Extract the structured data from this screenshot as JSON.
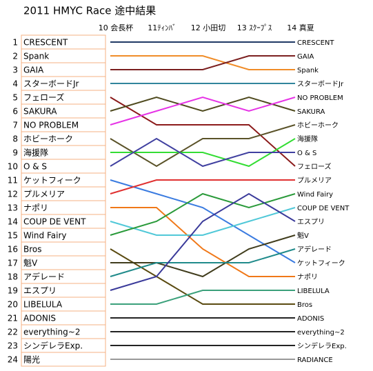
{
  "chart_data": {
    "type": "bump",
    "title": "2011 HMYC Race 途中結果",
    "categories": [
      "10 会長杯",
      "11ﾃｨﾝﾊﾞ",
      "12 小田切",
      "13 ｽｸｰﾌﾟｽ",
      "14 真夏"
    ],
    "ylim": [
      1,
      24
    ],
    "y_inverted": true,
    "yticks": [
      1,
      2,
      3,
      4,
      5,
      6,
      7,
      8,
      9,
      10,
      11,
      12,
      13,
      14,
      15,
      16,
      17,
      18,
      19,
      20,
      21,
      22,
      23,
      24
    ],
    "series": [
      {
        "name": "CRESCENT",
        "color": "#1f3864",
        "values": [
          1,
          1,
          1,
          1,
          1
        ]
      },
      {
        "name": "Spank",
        "color": "#f08c28",
        "values": [
          2,
          2,
          2,
          3,
          3
        ]
      },
      {
        "name": "GAIA",
        "color": "#7b1f1f",
        "values": [
          3,
          3,
          3,
          2,
          2
        ]
      },
      {
        "name": "スターボードJr",
        "color": "#31859c",
        "values": [
          4,
          4,
          4,
          4,
          4
        ]
      },
      {
        "name": "フェローズ",
        "color": "#8b1a1a",
        "values": [
          5,
          7,
          7,
          7,
          10
        ]
      },
      {
        "name": "SAKURA",
        "color": "#4f4a1e",
        "values": [
          6,
          5,
          6,
          5,
          6
        ]
      },
      {
        "name": "NO PROBLEM",
        "color": "#e633e6",
        "values": [
          7,
          6,
          5,
          6,
          5
        ]
      },
      {
        "name": "ホビーホーク",
        "color": "#5a5228",
        "values": [
          8,
          10,
          8,
          8,
          7
        ]
      },
      {
        "name": "海援隊",
        "color": "#33dd33",
        "values": [
          9,
          9,
          9,
          10,
          8
        ]
      },
      {
        "name": "O & S",
        "color": "#4040a0",
        "values": [
          10,
          8,
          10,
          9,
          9
        ]
      },
      {
        "name": "ケットフィーク",
        "color": "#3a7be0",
        "values": [
          11,
          12,
          13,
          15,
          17
        ]
      },
      {
        "name": "プルメリア",
        "color": "#e03030",
        "values": [
          12,
          11,
          11,
          11,
          11
        ]
      },
      {
        "name": "ナポリ",
        "color": "#f07818",
        "values": [
          13,
          13,
          16,
          18,
          18
        ]
      },
      {
        "name": "COUP DE VENT",
        "color": "#50c8d8",
        "values": [
          14,
          15,
          15,
          14,
          13
        ]
      },
      {
        "name": "Wind Fairy",
        "color": "#2a9a3a",
        "values": [
          15,
          14,
          12,
          13,
          12
        ]
      },
      {
        "name": "Bros",
        "color": "#5a4a10",
        "values": [
          16,
          18,
          20,
          20,
          20
        ]
      },
      {
        "name": "魁V",
        "color": "#403c1c",
        "values": [
          17,
          17,
          18,
          16,
          15
        ]
      },
      {
        "name": "アデレード",
        "color": "#1f8a8a",
        "values": [
          18,
          17,
          17,
          17,
          16
        ]
      },
      {
        "name": "エスプリ",
        "color": "#3a3a9a",
        "values": [
          19,
          18,
          14,
          12,
          14
        ]
      },
      {
        "name": "LIBELULA",
        "color": "#3aa07a",
        "values": [
          20,
          20,
          19,
          19,
          19
        ]
      },
      {
        "name": "ADONIS",
        "color": "#222222",
        "values": [
          21,
          21,
          21,
          21,
          21
        ]
      },
      {
        "name": "everything~2",
        "color": "#222222",
        "values": [
          22,
          22,
          22,
          22,
          22
        ]
      },
      {
        "name": "シンデレラExp.",
        "color": "#222222",
        "values": [
          23,
          23,
          23,
          23,
          23
        ]
      },
      {
        "name": "陽光",
        "color": "#999999",
        "values": [
          24,
          24,
          24,
          24,
          24
        ]
      }
    ],
    "right_labels": [
      "CRESCENT",
      "GAIA",
      "Spank",
      "スターボードJr",
      "NO PROBLEM",
      "SAKURA",
      "ホビーホーク",
      "海援隊",
      "O & S",
      "フェローズ",
      "プルメリア",
      "Wind Fairy",
      "COUP DE VENT",
      "エスプリ",
      "魁V",
      "アデレード",
      "ケットフィーク",
      "ナポリ",
      "LIBELULA",
      "Bros",
      "ADONIS",
      "everything~2",
      "シンデレラExp.",
      "RADIANCE"
    ]
  }
}
